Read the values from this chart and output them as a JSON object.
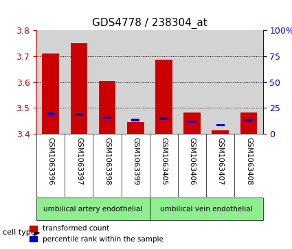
{
  "title": "GDS4778 / 238304_at",
  "samples": [
    "GSM1063396",
    "GSM1063397",
    "GSM1063398",
    "GSM1063399",
    "GSM1063405",
    "GSM1063406",
    "GSM1063407",
    "GSM1063408"
  ],
  "red_values": [
    3.71,
    3.748,
    3.605,
    3.445,
    3.685,
    3.483,
    3.415,
    3.483
  ],
  "blue_values": [
    3.473,
    3.47,
    3.458,
    3.449,
    3.455,
    3.443,
    3.43,
    3.447
  ],
  "blue_heights": [
    0.009,
    0.009,
    0.009,
    0.009,
    0.009,
    0.009,
    0.009,
    0.009
  ],
  "y_min": 3.4,
  "y_max": 3.8,
  "y_ticks": [
    3.4,
    3.5,
    3.6,
    3.7,
    3.8
  ],
  "y2_ticks": [
    0,
    25,
    50,
    75,
    100
  ],
  "y2_tick_positions": [
    3.4,
    3.5,
    3.6,
    3.7,
    3.8
  ],
  "cell_type_groups": [
    {
      "label": "umbilical artery endothelial",
      "start": 0,
      "end": 4,
      "color": "#90EE90"
    },
    {
      "label": "umbilical vein endothelial",
      "start": 4,
      "end": 8,
      "color": "#90EE90"
    }
  ],
  "bar_bg_color": "#d3d3d3",
  "red_color": "#cc0000",
  "blue_color": "#0000cc",
  "bar_width": 0.6,
  "background_color": "#ffffff",
  "grid_color": "#000000",
  "left_axis_color": "#cc0000",
  "right_axis_color": "#0000cc"
}
